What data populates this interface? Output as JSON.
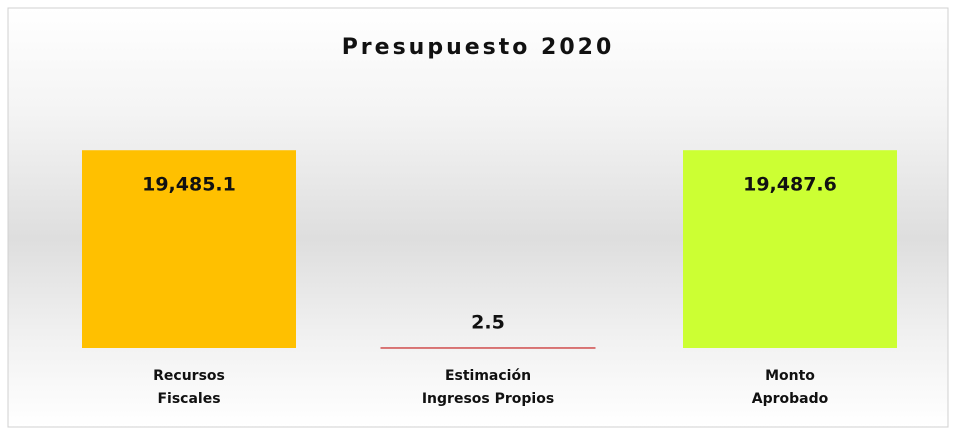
{
  "chart_data": {
    "type": "bar",
    "title": "Presupuesto 2020",
    "categories": [
      [
        "Recursos",
        "Fiscales"
      ],
      [
        "Estimación",
        "Ingresos Propios"
      ],
      [
        "Monto",
        "Aprobado"
      ]
    ],
    "values": [
      19485.1,
      2.5,
      19487.6
    ],
    "value_labels": [
      "19,485.1",
      "2.5",
      "19,487.6"
    ],
    "colors": [
      "#FFC000",
      "#C00000",
      "#CCFF33"
    ],
    "ylim": [
      0,
      20000
    ]
  }
}
